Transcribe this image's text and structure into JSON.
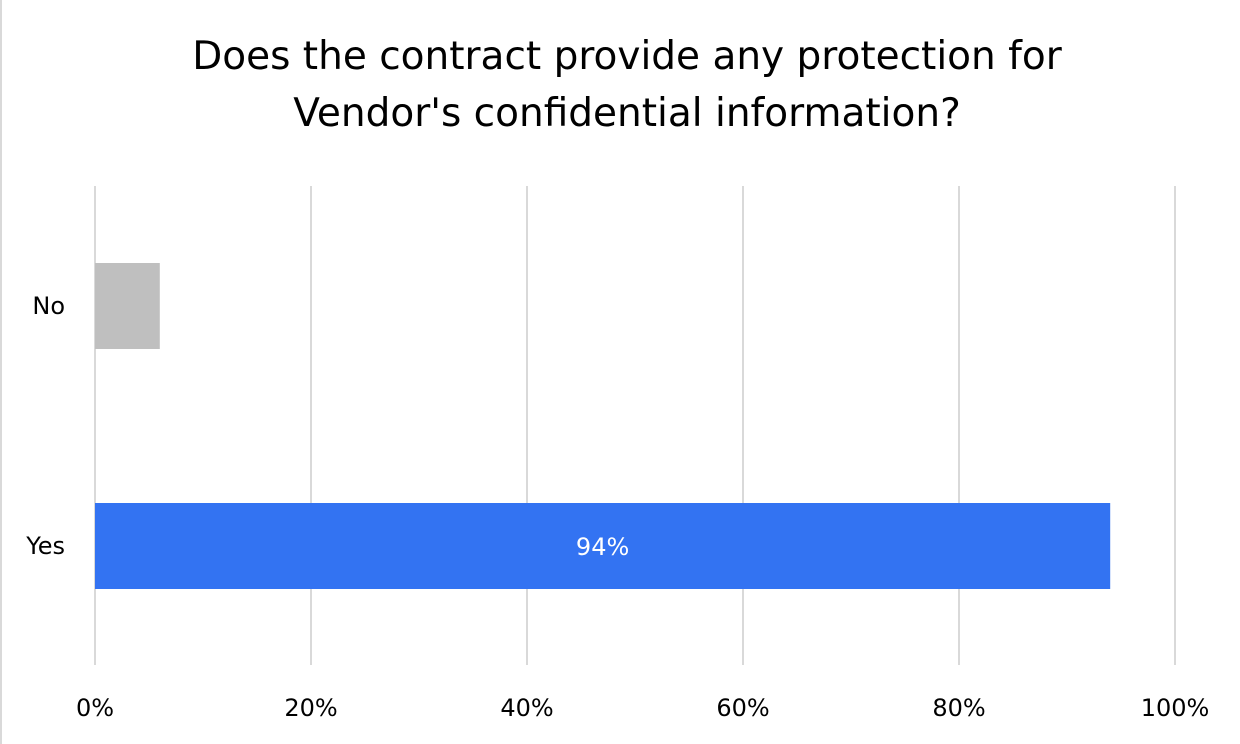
{
  "chart_data": {
    "type": "bar",
    "orientation": "horizontal",
    "title": "Does the contract provide any protection for Vendor's confidential information?",
    "title_lines": [
      "Does the contract provide any protection for",
      "Vendor's confidential information?"
    ],
    "categories": [
      "No",
      "Yes"
    ],
    "values": [
      6,
      94
    ],
    "value_unit": "%",
    "data_labels": [
      {
        "category": "Yes",
        "text": "94%"
      }
    ],
    "bar_colors": {
      "No": "#bfbfbf",
      "Yes": "#3373f2"
    },
    "xlim": [
      0,
      100
    ],
    "x_ticks": [
      0,
      20,
      40,
      60,
      80,
      100
    ],
    "x_tick_labels": [
      "0%",
      "20%",
      "40%",
      "60%",
      "80%",
      "100%"
    ],
    "grid": "vertical gridlines",
    "legend": "none"
  },
  "colors": {
    "gridline": "#d9d9d9",
    "text": "#000000",
    "data_label_text": "#ffffff"
  }
}
